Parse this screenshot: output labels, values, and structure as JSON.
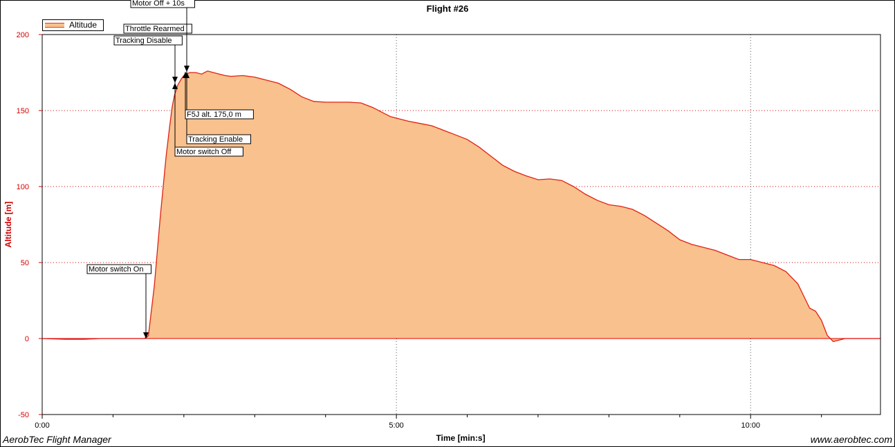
{
  "app": {
    "footer_left": "AerobTec Flight Manager",
    "footer_right": "www.aerobtec.com"
  },
  "colors": {
    "line": "#e02010",
    "fill": "#f9c18d",
    "zero_line": "#e00000",
    "grid": "#d40000",
    "axis_text": "#d40000"
  },
  "chart_data": {
    "type": "area",
    "title": "Flight #26",
    "xlabel": "Time [min:s]",
    "ylabel": "Altitude [m]",
    "legend": {
      "placement": "top-left",
      "entries": [
        "Altitude"
      ]
    },
    "xlim_seconds": [
      0,
      710
    ],
    "ylim": [
      -50,
      200
    ],
    "y_ticks": [
      -50,
      0,
      50,
      100,
      150,
      200
    ],
    "x_ticks": [
      {
        "t": 0,
        "label": "0:00"
      },
      {
        "t": 300,
        "label": "5:00"
      },
      {
        "t": 600,
        "label": "10:00"
      }
    ],
    "x_minor_ticks": [
      60,
      120,
      180,
      240,
      360,
      420,
      480,
      540,
      660
    ],
    "grid": true,
    "series": [
      {
        "name": "Altitude",
        "x_seconds": [
          0,
          20,
          35,
          50,
          65,
          80,
          86,
          88,
          90,
          95,
          100,
          105,
          108,
          110,
          112,
          115,
          118,
          120,
          122,
          125,
          130,
          135,
          140,
          145,
          150,
          155,
          160,
          170,
          180,
          190,
          200,
          210,
          220,
          230,
          240,
          250,
          260,
          270,
          280,
          290,
          295,
          300,
          310,
          320,
          330,
          340,
          350,
          360,
          370,
          380,
          390,
          400,
          410,
          420,
          430,
          440,
          450,
          460,
          470,
          480,
          490,
          500,
          510,
          520,
          530,
          540,
          550,
          560,
          570,
          580,
          590,
          600,
          610,
          620,
          630,
          640,
          645,
          650,
          655,
          660,
          665,
          670,
          675,
          680,
          685,
          690,
          700,
          710
        ],
        "y": [
          0,
          -0.5,
          -0.5,
          0,
          0,
          0,
          0,
          0.5,
          2,
          35,
          80,
          120,
          140,
          152,
          160,
          167,
          171,
          173,
          174,
          175,
          175,
          174,
          176,
          175,
          174,
          173,
          172.5,
          173,
          172,
          170,
          168,
          164,
          159,
          156,
          155.5,
          155.5,
          155.5,
          155,
          152,
          148,
          146,
          145,
          143,
          141.5,
          140,
          137,
          134,
          131,
          126,
          120,
          114,
          110,
          107,
          104.5,
          105,
          104,
          100,
          95,
          91,
          88,
          87,
          85,
          81,
          76,
          71,
          65,
          62,
          60,
          58,
          55,
          52,
          52,
          50,
          48,
          44,
          36,
          28,
          20,
          18,
          12,
          2,
          -2,
          -1,
          0,
          0,
          0,
          0,
          0
        ]
      }
    ],
    "annotations": [
      {
        "label": "Motor switch On",
        "t": 88,
        "alt": 1,
        "direction": "down"
      },
      {
        "label": "Tracking Disable",
        "t": 113,
        "alt": 168,
        "direction": "down"
      },
      {
        "label": "Motor switch Off",
        "t": 113,
        "alt": 168,
        "direction": "up"
      },
      {
        "label": "Throttle Rearmed",
        "t": 122,
        "alt": 175,
        "direction": "up"
      },
      {
        "label": "Tracking Enable",
        "t": 122,
        "alt": 175,
        "direction": "up"
      },
      {
        "label": "Motor Off + 10s",
        "t": 123,
        "alt": 175,
        "direction": "down"
      },
      {
        "label": "F5J alt. 175,0 m",
        "t": 122,
        "alt": 175,
        "direction": "up"
      }
    ]
  }
}
